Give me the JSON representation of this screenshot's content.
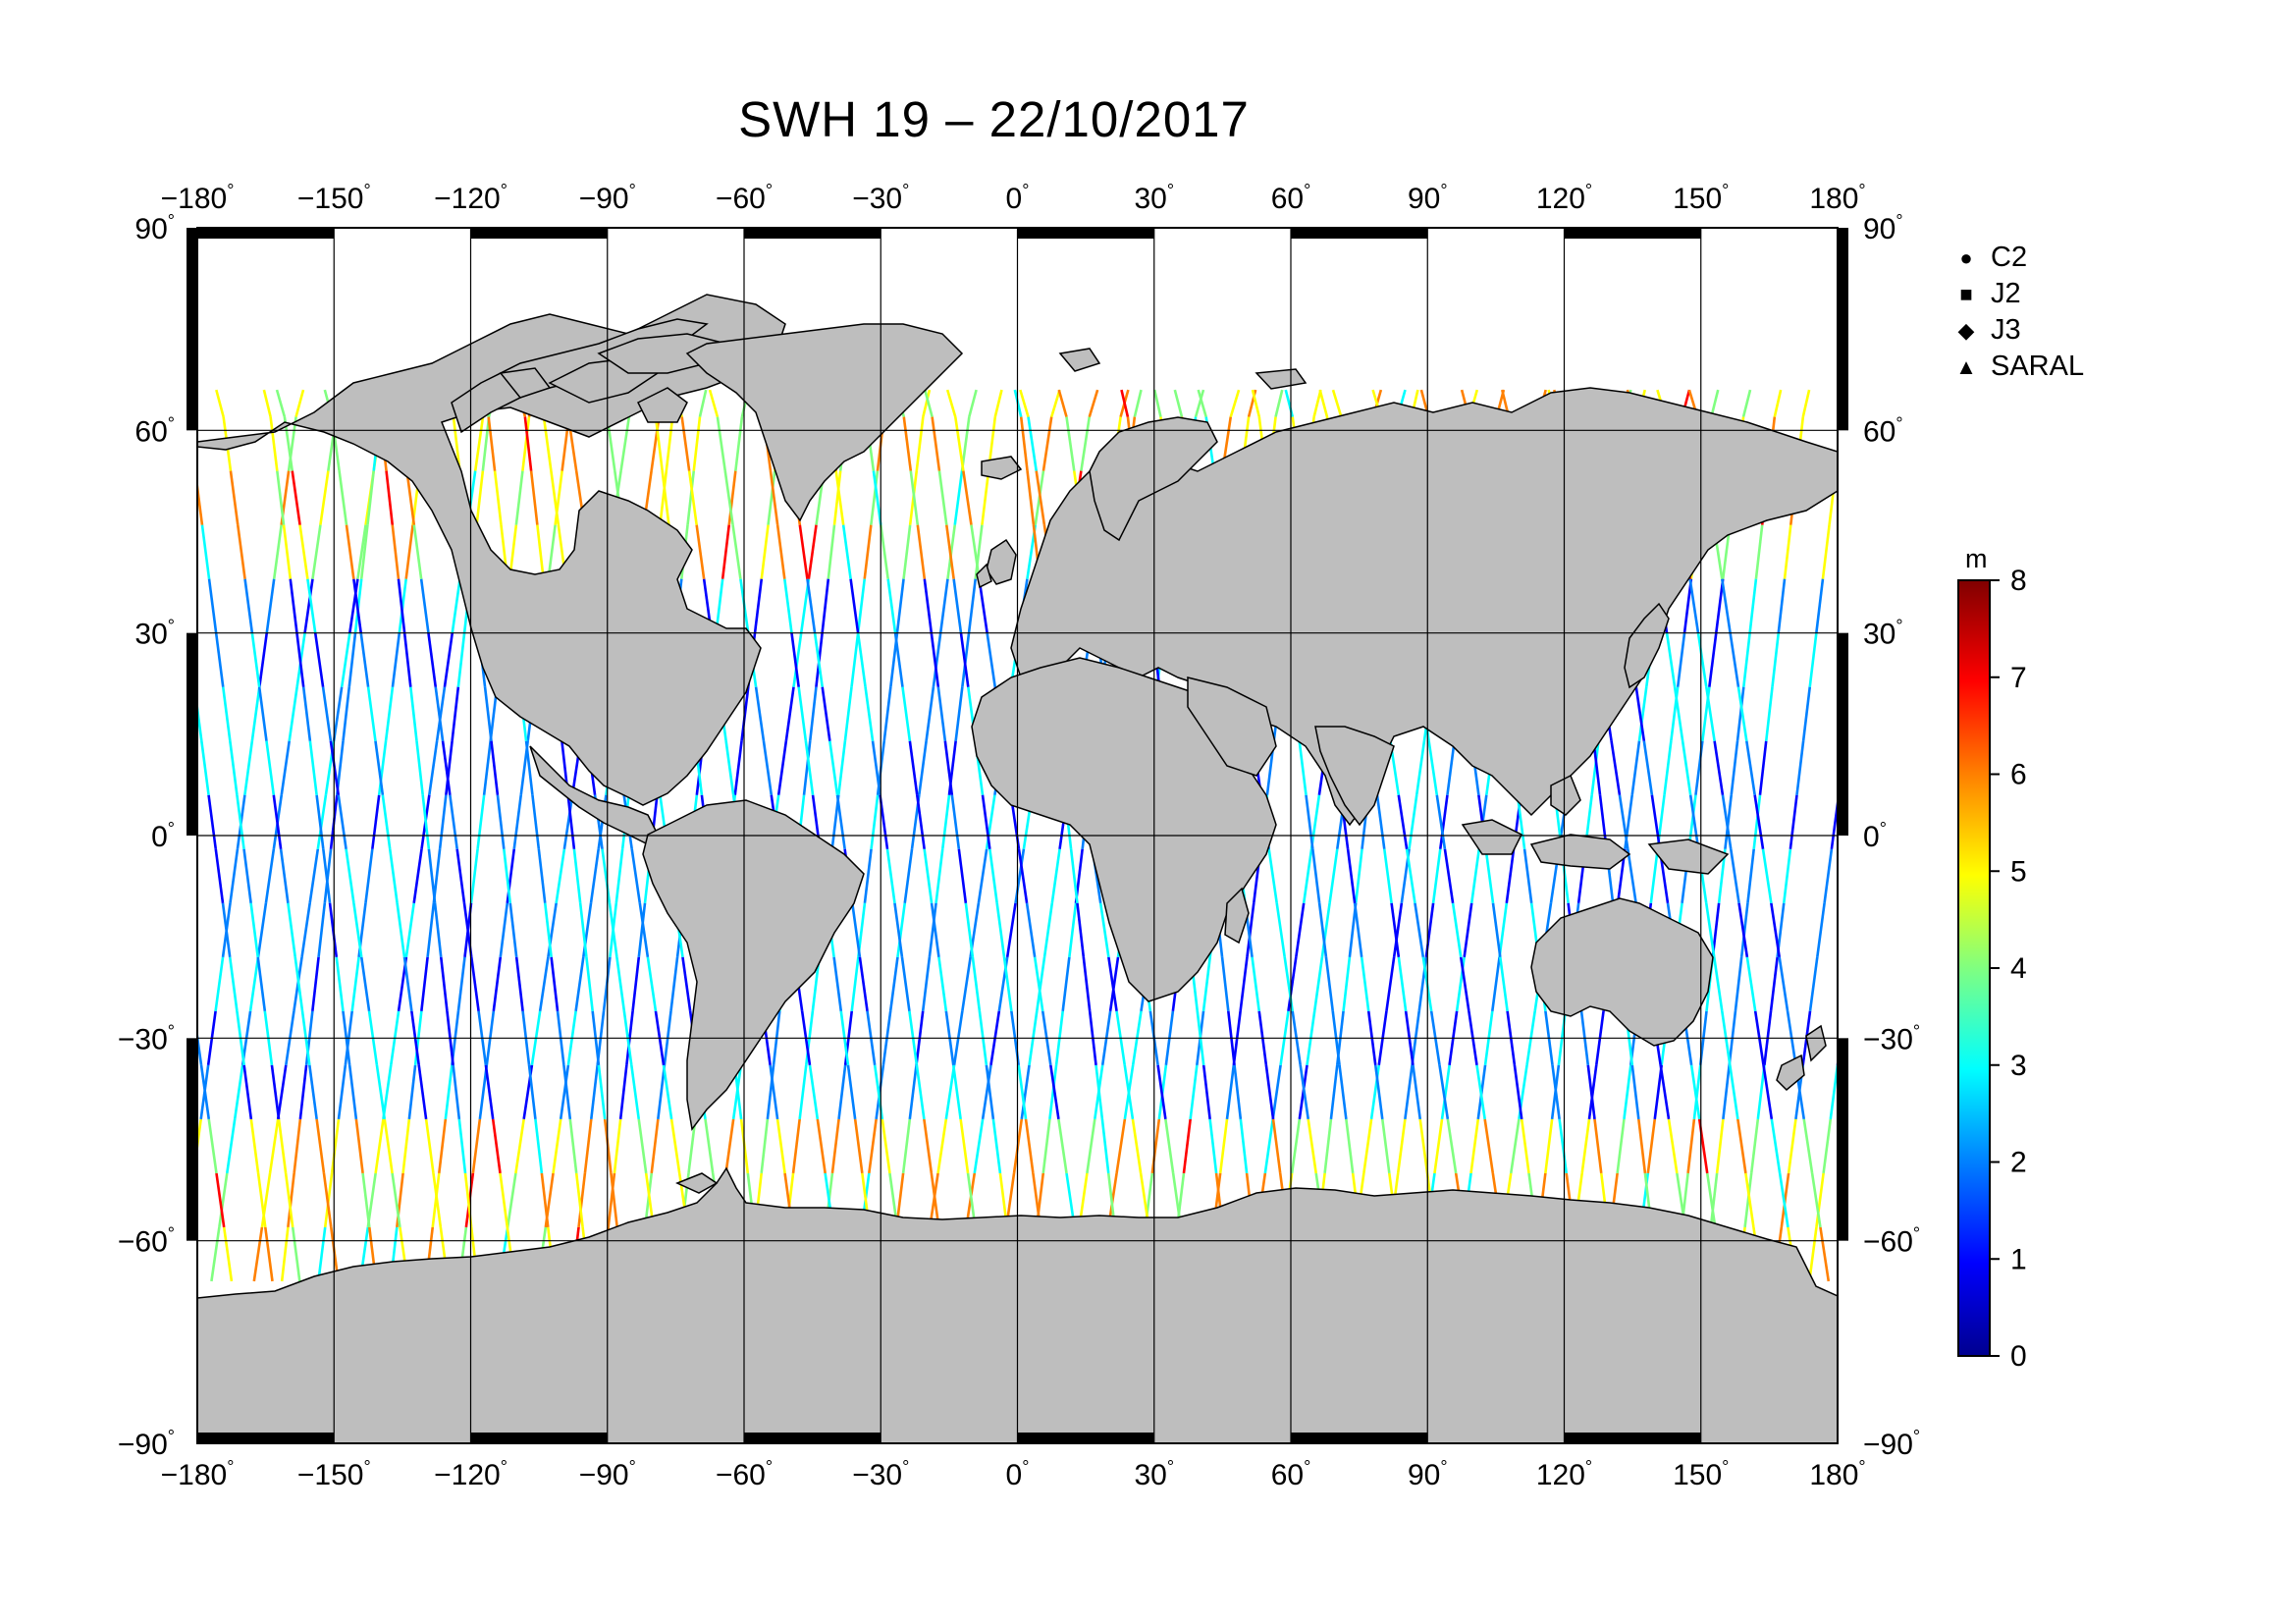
{
  "title": "SWH 19 – 22/10/2017",
  "legend": {
    "items": [
      {
        "symbol": "●",
        "label": "C2"
      },
      {
        "symbol": "■",
        "label": "J2"
      },
      {
        "symbol": "◆",
        "label": "J3"
      },
      {
        "symbol": "▲",
        "label": "SARAL"
      }
    ]
  },
  "colorbar": {
    "unit": "m",
    "ticks": [
      "0",
      "1",
      "2",
      "3",
      "4",
      "5",
      "6",
      "7",
      "8"
    ],
    "colors": [
      "#00008f",
      "#0000ff",
      "#0080ff",
      "#00ffff",
      "#80ff80",
      "#ffff00",
      "#ff8000",
      "#ff0000",
      "#800000"
    ]
  },
  "axes": {
    "lon_labels": [
      "−180",
      "−150",
      "−120",
      "−90",
      "−60",
      "−30",
      "0",
      "30",
      "60",
      "90",
      "120",
      "150",
      "180"
    ],
    "lat_labels": [
      "90",
      "60",
      "30",
      "0",
      "−30",
      "−60",
      "−90"
    ],
    "degree_mark": "°"
  },
  "colors": {
    "land": "#bebebe",
    "ocean": "#ffffff",
    "frame": "#000000"
  }
}
